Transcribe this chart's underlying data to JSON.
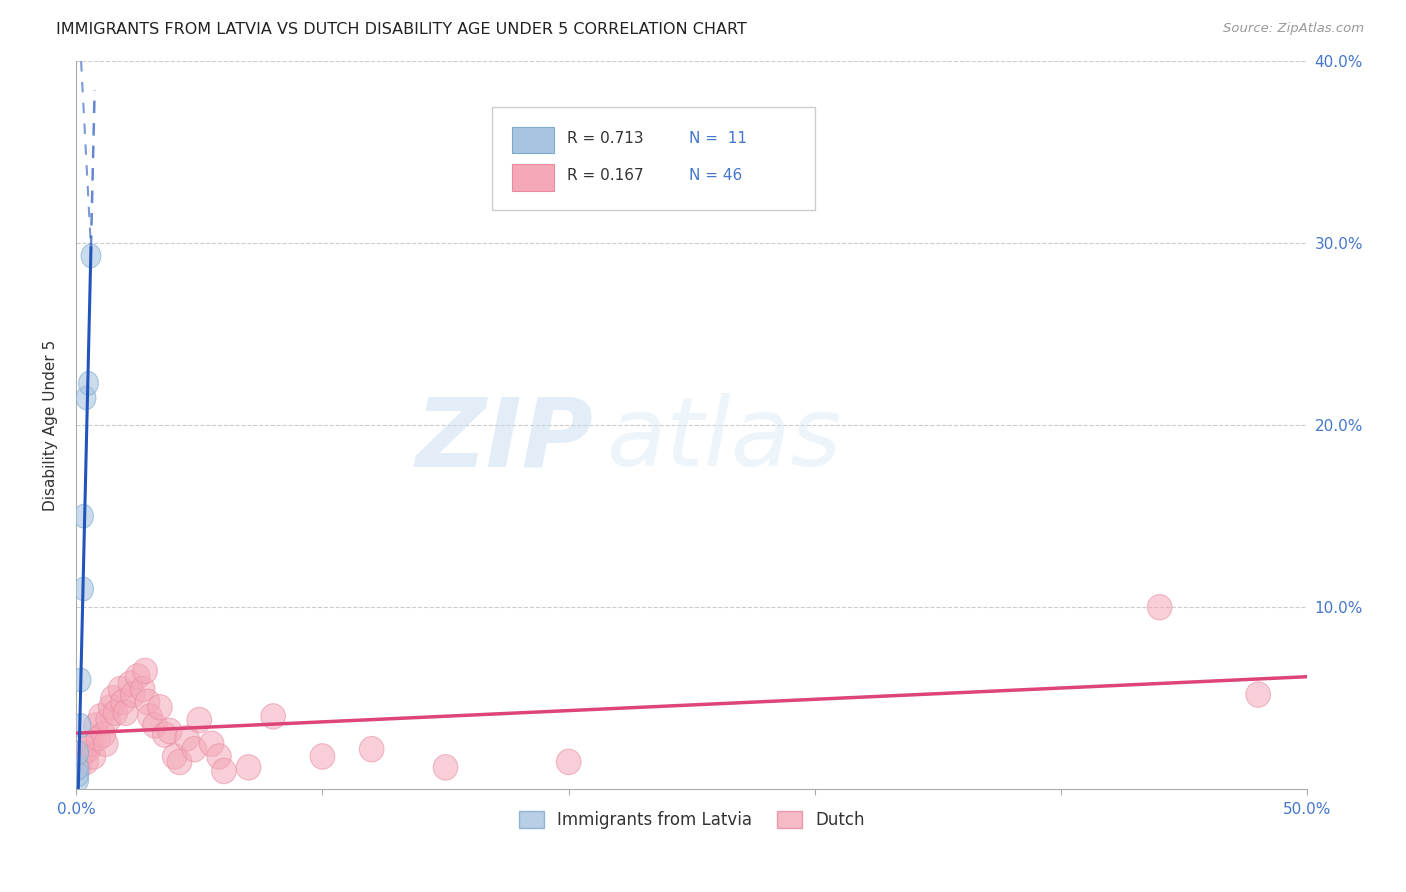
{
  "title": "IMMIGRANTS FROM LATVIA VS DUTCH DISABILITY AGE UNDER 5 CORRELATION CHART",
  "source": "Source: ZipAtlas.com",
  "ylabel": "Disability Age Under 5",
  "xlim": [
    0.0,
    0.5
  ],
  "ylim": [
    0.0,
    0.4
  ],
  "xticks": [
    0.0,
    0.1,
    0.2,
    0.3,
    0.4,
    0.5
  ],
  "yticks": [
    0.0,
    0.1,
    0.2,
    0.3,
    0.4
  ],
  "xticklabels": [
    "0.0%",
    "",
    "",
    "",
    "",
    "50.0%"
  ],
  "yticklabels_left": [
    "",
    "",
    "",
    "",
    ""
  ],
  "yticklabels_right": [
    "",
    "10.0%",
    "20.0%",
    "30.0%",
    "40.0%"
  ],
  "blue_fill": "#A8C4E0",
  "blue_edge": "#7AAACE",
  "pink_fill": "#F4A8B8",
  "pink_edge": "#E88AA0",
  "blue_line_color": "#2255BB",
  "pink_line_color": "#DD4477",
  "tick_color": "#4477CC",
  "legend_blue_r": "R = 0.713",
  "legend_blue_n": "N =  11",
  "legend_pink_r": "R = 0.167",
  "legend_pink_n": "N = 46",
  "blue_points_x": [
    0.001,
    0.001,
    0.001,
    0.001,
    0.002,
    0.002,
    0.003,
    0.003,
    0.004,
    0.005,
    0.006
  ],
  "blue_points_y": [
    0.005,
    0.008,
    0.012,
    0.02,
    0.035,
    0.06,
    0.11,
    0.15,
    0.215,
    0.223,
    0.293
  ],
  "pink_points_x": [
    0.001,
    0.002,
    0.003,
    0.004,
    0.005,
    0.006,
    0.007,
    0.008,
    0.009,
    0.01,
    0.011,
    0.012,
    0.013,
    0.014,
    0.015,
    0.016,
    0.018,
    0.019,
    0.02,
    0.022,
    0.023,
    0.025,
    0.027,
    0.028,
    0.029,
    0.03,
    0.032,
    0.034,
    0.036,
    0.038,
    0.04,
    0.042,
    0.045,
    0.048,
    0.05,
    0.055,
    0.058,
    0.06,
    0.07,
    0.08,
    0.1,
    0.12,
    0.15,
    0.2,
    0.44,
    0.48
  ],
  "pink_points_y": [
    0.012,
    0.018,
    0.02,
    0.015,
    0.022,
    0.025,
    0.018,
    0.035,
    0.028,
    0.04,
    0.03,
    0.025,
    0.038,
    0.045,
    0.05,
    0.042,
    0.055,
    0.048,
    0.042,
    0.058,
    0.052,
    0.062,
    0.055,
    0.065,
    0.048,
    0.04,
    0.035,
    0.045,
    0.03,
    0.032,
    0.018,
    0.015,
    0.028,
    0.022,
    0.038,
    0.025,
    0.018,
    0.01,
    0.012,
    0.04,
    0.018,
    0.022,
    0.012,
    0.015,
    0.1,
    0.052
  ],
  "watermark_zip": "ZIP",
  "watermark_atlas": "atlas",
  "figsize": [
    14.06,
    8.92
  ],
  "dpi": 100
}
